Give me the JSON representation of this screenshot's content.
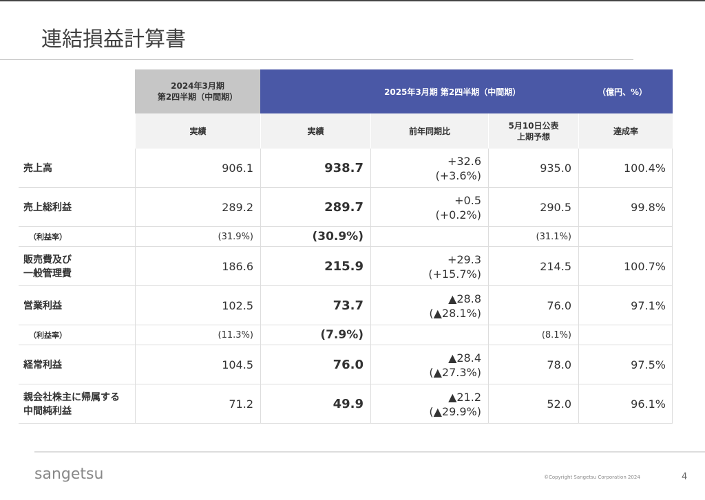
{
  "header": {
    "title": "連結損益計算書"
  },
  "table": {
    "prev_period": [
      "2024年3月期",
      "第2四半期（中間期）"
    ],
    "current_period": "2025年3月期 第2四半期（中間期）",
    "unit": "（億円、%）",
    "columns": [
      [
        "実績"
      ],
      [
        "実績"
      ],
      [
        "前年同期比"
      ],
      [
        "5月10日公表",
        "上期予想"
      ],
      [
        "達成率"
      ]
    ],
    "rows": [
      {
        "label": [
          "売上高"
        ],
        "cells": [
          [
            "906.1"
          ],
          [
            "938.7"
          ],
          [
            "+32.6",
            "(+3.6%)"
          ],
          [
            "935.0"
          ],
          [
            "100.4%"
          ]
        ]
      },
      {
        "label": [
          "売上総利益"
        ],
        "cells": [
          [
            "289.2"
          ],
          [
            "289.7"
          ],
          [
            "+0.5",
            "(+0.2%)"
          ],
          [
            "290.5"
          ],
          [
            "99.8%"
          ]
        ]
      },
      {
        "label": [
          "（利益率）"
        ],
        "cells": [
          [
            "(31.9%)"
          ],
          [
            "(30.9%)"
          ],
          null,
          [
            "(31.1%)"
          ],
          null
        ]
      },
      {
        "label": [
          "販売費及び",
          "一般管理費"
        ],
        "cells": [
          [
            "186.6"
          ],
          [
            "215.9"
          ],
          [
            "+29.3",
            "(+15.7%)"
          ],
          [
            "214.5"
          ],
          [
            "100.7%"
          ]
        ]
      },
      {
        "label": [
          "営業利益"
        ],
        "cells": [
          [
            "102.5"
          ],
          [
            "73.7"
          ],
          [
            "▲28.8",
            "(▲28.1%)"
          ],
          [
            "76.0"
          ],
          [
            "97.1%"
          ]
        ]
      },
      {
        "label": [
          "（利益率）"
        ],
        "cells": [
          [
            "(11.3%)"
          ],
          [
            "(7.9%)"
          ],
          null,
          [
            "(8.1%)"
          ],
          null
        ]
      },
      {
        "label": [
          "経常利益"
        ],
        "cells": [
          [
            "104.5"
          ],
          [
            "76.0"
          ],
          [
            "▲28.4",
            "(▲27.3%)"
          ],
          [
            "78.0"
          ],
          [
            "97.5%"
          ]
        ]
      },
      {
        "label": [
          "親会社株主に帰属する",
          "中間純利益"
        ],
        "cells": [
          [
            "71.2"
          ],
          [
            "49.9"
          ],
          [
            "▲21.2",
            "(▲29.9%)"
          ],
          [
            "52.0"
          ],
          [
            "96.1%"
          ]
        ]
      }
    ]
  },
  "footer": {
    "logo": "sangetsu",
    "copyright": "©Copyright Sangetsu Corporation 2024",
    "page": "4"
  }
}
